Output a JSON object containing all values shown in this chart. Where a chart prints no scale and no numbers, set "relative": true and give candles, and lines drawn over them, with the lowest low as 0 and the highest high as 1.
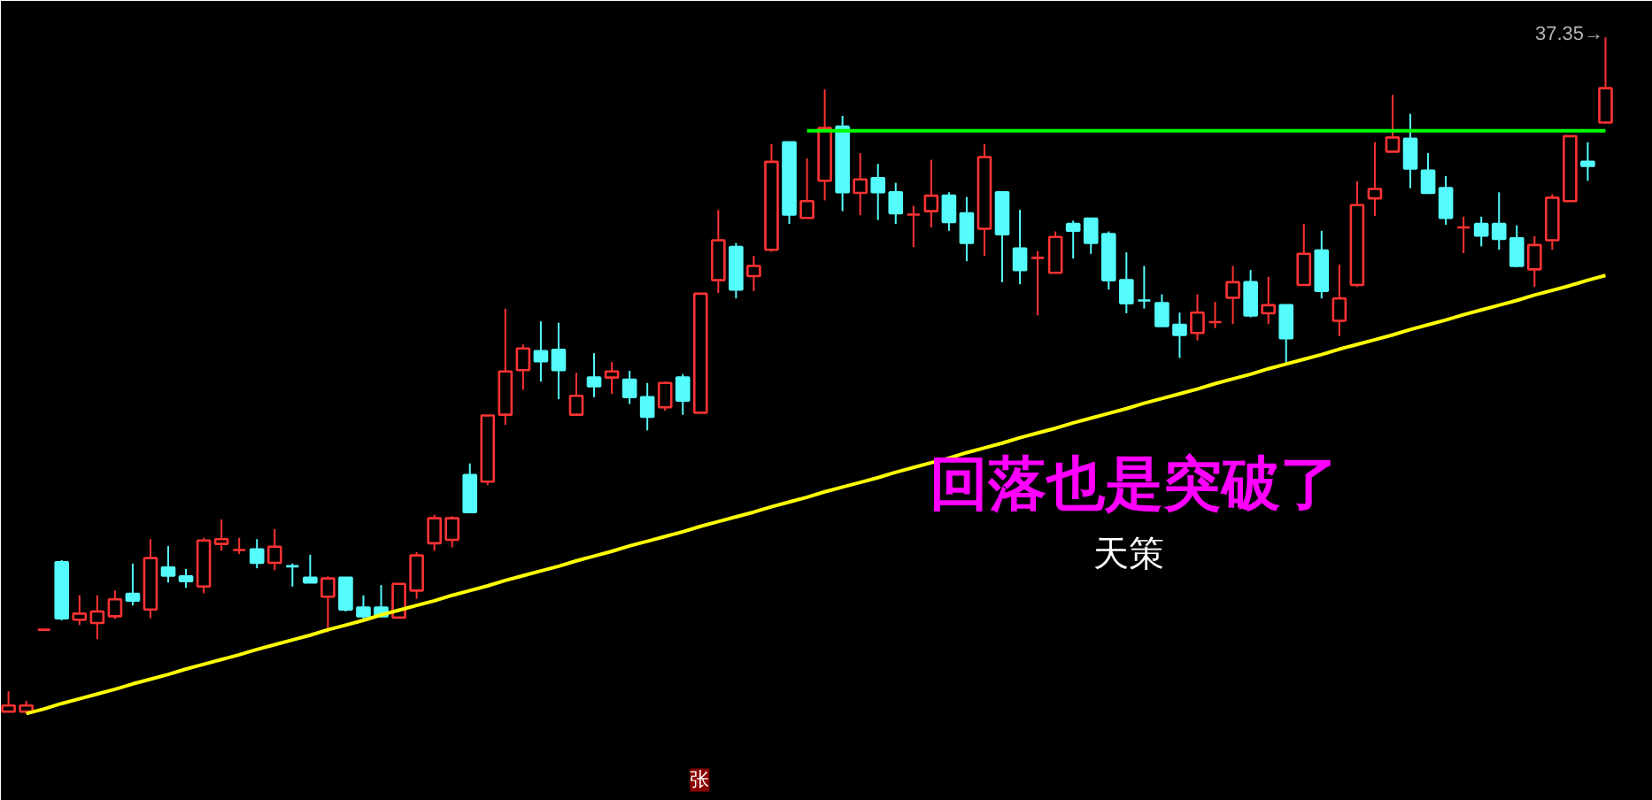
{
  "chart_data": {
    "type": "candlestick",
    "relative": true,
    "tick_labels": false,
    "categories": [
      null,
      null,
      null,
      null,
      null,
      null,
      null,
      null,
      null,
      null,
      null,
      null,
      null,
      null,
      null,
      null,
      null,
      null,
      null,
      null,
      null,
      null,
      null,
      null,
      null,
      null,
      null,
      null,
      null,
      null,
      null,
      null,
      null,
      null,
      null,
      null,
      null,
      null,
      null,
      null,
      null,
      null,
      null,
      null,
      null,
      null,
      null,
      null,
      null,
      null,
      null,
      null,
      null,
      null,
      null,
      null,
      null,
      null,
      null,
      null,
      null,
      null,
      null,
      null,
      null,
      null,
      null,
      null,
      null,
      null,
      null,
      null,
      null,
      null,
      null,
      null,
      null,
      null,
      null,
      null,
      null,
      null,
      null,
      null,
      null,
      null,
      null,
      null,
      null,
      null,
      null
    ],
    "ohlc": [
      [
        0.003,
        0.033,
        0.003,
        0.012
      ],
      [
        0.003,
        0.019,
        0,
        0.012
      ],
      [
        0.124,
        0.124,
        0.124,
        0.124
      ],
      [
        0.224,
        0.227,
        0.138,
        0.141
      ],
      [
        0.139,
        0.175,
        0.131,
        0.148
      ],
      [
        0.134,
        0.175,
        0.11,
        0.151
      ],
      [
        0.144,
        0.182,
        0.14,
        0.169
      ],
      [
        0.177,
        0.222,
        0.16,
        0.167
      ],
      [
        0.154,
        0.258,
        0.141,
        0.23
      ],
      [
        0.216,
        0.248,
        0.194,
        0.204
      ],
      [
        0.203,
        0.214,
        0.186,
        0.196
      ],
      [
        0.188,
        0.26,
        0.178,
        0.256
      ],
      [
        0.251,
        0.287,
        0.241,
        0.258
      ],
      [
        0.242,
        0.26,
        0.236,
        0.242
      ],
      [
        0.243,
        0.258,
        0.215,
        0.223
      ],
      [
        0.223,
        0.273,
        0.212,
        0.247
      ],
      [
        0.218,
        0.222,
        0.188,
        0.218
      ],
      [
        0.201,
        0.235,
        0.194,
        0.194
      ],
      [
        0.173,
        0.203,
        0.12,
        0.2
      ],
      [
        0.201,
        0.201,
        0.151,
        0.154
      ],
      [
        0.157,
        0.175,
        0.137,
        0.144
      ],
      [
        0.157,
        0.19,
        0.143,
        0.144
      ],
      [
        0.142,
        0.192,
        0.142,
        0.192
      ],
      [
        0.182,
        0.239,
        0.17,
        0.234
      ],
      [
        0.252,
        0.294,
        0.241,
        0.289
      ],
      [
        0.257,
        0.292,
        0.246,
        0.289
      ],
      [
        0.353,
        0.37,
        0.298,
        0.298
      ],
      [
        0.343,
        0.441,
        0.338,
        0.441
      ],
      [
        0.442,
        0.599,
        0.427,
        0.506
      ],
      [
        0.508,
        0.546,
        0.479,
        0.54
      ],
      [
        0.536,
        0.58,
        0.491,
        0.521
      ],
      [
        0.538,
        0.578,
        0.465,
        0.508
      ],
      [
        0.442,
        0.504,
        0.442,
        0.47
      ],
      [
        0.497,
        0.533,
        0.468,
        0.484
      ],
      [
        0.497,
        0.52,
        0.473,
        0.506
      ],
      [
        0.494,
        0.507,
        0.458,
        0.468
      ],
      [
        0.468,
        0.489,
        0.419,
        0.439
      ],
      [
        0.453,
        0.491,
        0.448,
        0.489
      ],
      [
        0.497,
        0.502,
        0.442,
        0.463
      ],
      [
        0.445,
        0.621,
        0.445,
        0.621
      ],
      [
        0.641,
        0.745,
        0.622,
        0.7
      ],
      [
        0.69,
        0.696,
        0.614,
        0.627
      ],
      [
        0.647,
        0.677,
        0.625,
        0.662
      ],
      [
        0.686,
        0.842,
        0.683,
        0.816
      ],
      [
        0.845,
        0.845,
        0.724,
        0.738
      ],
      [
        0.733,
        0.821,
        0.733,
        0.758
      ],
      [
        0.788,
        0.923,
        0.759,
        0.866
      ],
      [
        0.868,
        0.884,
        0.743,
        0.771
      ],
      [
        0.77,
        0.829,
        0.737,
        0.79
      ],
      [
        0.792,
        0.813,
        0.73,
        0.771
      ],
      [
        0.771,
        0.785,
        0.724,
        0.74
      ],
      [
        0.738,
        0.751,
        0.69,
        0.738
      ],
      [
        0.743,
        0.819,
        0.719,
        0.766
      ],
      [
        0.766,
        0.771,
        0.714,
        0.727
      ],
      [
        0.74,
        0.764,
        0.669,
        0.696
      ],
      [
        0.717,
        0.842,
        0.677,
        0.823
      ],
      [
        0.771,
        0.771,
        0.638,
        0.709
      ],
      [
        0.688,
        0.745,
        0.635,
        0.656
      ],
      [
        0.674,
        0.684,
        0.589,
        0.674
      ],
      [
        0.652,
        0.713,
        0.652,
        0.705
      ],
      [
        0.724,
        0.729,
        0.673,
        0.714
      ],
      [
        0.732,
        0.732,
        0.68,
        0.696
      ],
      [
        0.709,
        0.713,
        0.627,
        0.641
      ],
      [
        0.641,
        0.682,
        0.592,
        0.607
      ],
      [
        0.611,
        0.662,
        0.599,
        0.611
      ],
      [
        0.607,
        0.62,
        0.573,
        0.573
      ],
      [
        0.575,
        0.593,
        0.526,
        0.56
      ],
      [
        0.563,
        0.62,
        0.552,
        0.593
      ],
      [
        0.579,
        0.609,
        0.57,
        0.579
      ],
      [
        0.615,
        0.662,
        0.576,
        0.638
      ],
      [
        0.638,
        0.656,
        0.586,
        0.589
      ],
      [
        0.592,
        0.646,
        0.576,
        0.604
      ],
      [
        0.604,
        0.604,
        0.518,
        0.555
      ],
      [
        0.634,
        0.724,
        0.634,
        0.68
      ],
      [
        0.685,
        0.714,
        0.614,
        0.625
      ],
      [
        0.581,
        0.664,
        0.558,
        0.614
      ],
      [
        0.634,
        0.787,
        0.631,
        0.752
      ],
      [
        0.762,
        0.845,
        0.736,
        0.776
      ],
      [
        0.831,
        0.915,
        0.831,
        0.852
      ],
      [
        0.85,
        0.887,
        0.777,
        0.806
      ],
      [
        0.803,
        0.829,
        0.77,
        0.77
      ],
      [
        0.777,
        0.795,
        0.723,
        0.733
      ],
      [
        0.719,
        0.735,
        0.681,
        0.719
      ],
      [
        0.724,
        0.735,
        0.691,
        0.707
      ],
      [
        0.724,
        0.771,
        0.686,
        0.702
      ],
      [
        0.703,
        0.722,
        0.66,
        0.662
      ],
      [
        0.657,
        0.706,
        0.631,
        0.693
      ],
      [
        0.7,
        0.768,
        0.686,
        0.763
      ],
      [
        0.758,
        0.854,
        0.758,
        0.854
      ],
      [
        0.816,
        0.845,
        0.788,
        0.81
      ],
      [
        0.874,
        1,
        0.874,
        0.925
      ]
    ],
    "colors": [
      "#ff3333",
      "#ff3333",
      "#ff3333",
      "#54fcfc",
      "#ff3333",
      "#ff3333",
      "#ff3333",
      "#54fcfc",
      "#ff3333",
      "#54fcfc",
      "#54fcfc",
      "#ff3333",
      "#ff3333",
      "#ff3333",
      "#54fcfc",
      "#ff3333",
      "#54fcfc",
      "#54fcfc",
      "#ff3333",
      "#54fcfc",
      "#54fcfc",
      "#54fcfc",
      "#ff3333",
      "#ff3333",
      "#ff3333",
      "#ff3333",
      "#54fcfc",
      "#ff3333",
      "#ff3333",
      "#ff3333",
      "#54fcfc",
      "#54fcfc",
      "#ff3333",
      "#54fcfc",
      "#ff3333",
      "#54fcfc",
      "#54fcfc",
      "#ff3333",
      "#54fcfc",
      "#ff3333",
      "#ff3333",
      "#54fcfc",
      "#ff3333",
      "#ff3333",
      "#54fcfc",
      "#ff3333",
      "#ff3333",
      "#54fcfc",
      "#ff3333",
      "#54fcfc",
      "#54fcfc",
      "#ff3333",
      "#ff3333",
      "#54fcfc",
      "#54fcfc",
      "#ff3333",
      "#54fcfc",
      "#54fcfc",
      "#ff3333",
      "#ff3333",
      "#54fcfc",
      "#54fcfc",
      "#54fcfc",
      "#54fcfc",
      "#54fcfc",
      "#54fcfc",
      "#54fcfc",
      "#ff3333",
      "#ff3333",
      "#ff3333",
      "#54fcfc",
      "#ff3333",
      "#54fcfc",
      "#ff3333",
      "#54fcfc",
      "#ff3333",
      "#ff3333",
      "#ff3333",
      "#ff3333",
      "#54fcfc",
      "#54fcfc",
      "#54fcfc",
      "#ff3333",
      "#54fcfc",
      "#54fcfc",
      "#54fcfc",
      "#ff3333",
      "#ff3333",
      "#ff3333",
      "#54fcfc",
      "#ff3333"
    ],
    "series": [
      {
        "type": "line",
        "color": "#ffff00",
        "values": [
          null,
          0,
          0.007,
          0.015,
          0.022,
          0.029,
          0.036,
          0.044,
          0.051,
          0.058,
          0.066,
          0.073,
          0.08,
          0.087,
          0.095,
          0.102,
          0.109,
          0.116,
          0.124,
          0.131,
          0.138,
          0.146,
          0.153,
          0.16,
          0.167,
          0.175,
          0.182,
          0.189,
          0.197,
          0.204,
          0.211,
          0.218,
          0.226,
          0.233,
          0.24,
          0.248,
          0.255,
          0.262,
          0.269,
          0.277,
          0.284,
          0.291,
          0.298,
          0.306,
          0.313,
          0.32,
          0.328,
          0.335,
          0.342,
          0.349,
          0.357,
          0.364,
          0.371,
          0.378,
          0.386,
          0.393,
          0.4,
          0.408,
          0.415,
          0.422,
          0.43,
          0.437,
          0.444,
          0.451,
          0.459,
          0.466,
          0.473,
          0.48,
          0.488,
          0.495,
          0.502,
          0.51,
          0.517,
          0.524,
          0.531,
          0.539,
          0.546,
          0.553,
          0.56,
          0.568,
          0.575,
          0.582,
          0.59,
          0.597,
          0.604,
          0.611,
          0.619,
          0.626,
          0.633,
          0.641,
          0.648
        ]
      },
      {
        "type": "line",
        "color": "#00ff00",
        "values": [
          null,
          null,
          null,
          null,
          null,
          null,
          null,
          null,
          null,
          null,
          null,
          null,
          null,
          null,
          null,
          null,
          null,
          null,
          null,
          null,
          null,
          null,
          null,
          null,
          null,
          null,
          null,
          null,
          null,
          null,
          null,
          null,
          null,
          null,
          null,
          null,
          null,
          null,
          null,
          null,
          null,
          null,
          null,
          null,
          null,
          0.862,
          0.862,
          0.862,
          0.862,
          0.862,
          0.862,
          0.862,
          0.862,
          0.862,
          0.862,
          0.862,
          0.862,
          0.862,
          0.862,
          0.862,
          0.862,
          0.862,
          0.862,
          0.862,
          0.862,
          0.862,
          0.862,
          0.862,
          0.862,
          0.862,
          0.862,
          0.862,
          0.862,
          0.862,
          0.862,
          0.862,
          0.862,
          0.862,
          0.862,
          0.862,
          0.862,
          0.862,
          0.862,
          0.862,
          0.862,
          0.862,
          0.862,
          0.862,
          0.862,
          0.862,
          0.862
        ]
      }
    ],
    "annotations": [
      "回落也是突破了",
      "天策",
      "37.35→",
      "张"
    ]
  }
}
